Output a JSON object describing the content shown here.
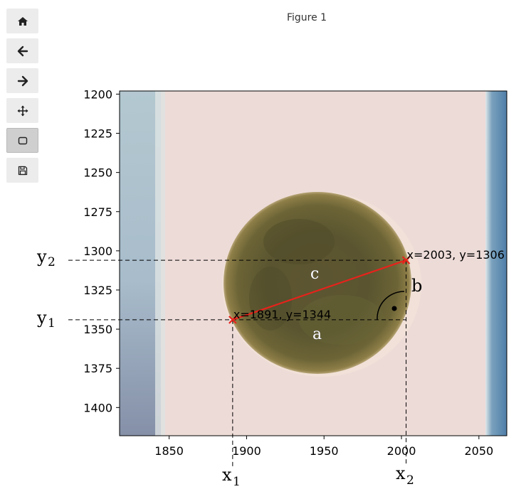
{
  "window": {
    "title": "Figure 1"
  },
  "toolbar": {
    "buttons": [
      {
        "name": "home",
        "icon": "home-icon"
      },
      {
        "name": "back",
        "icon": "arrow-left-icon"
      },
      {
        "name": "forward",
        "icon": "arrow-right-icon"
      },
      {
        "name": "pan",
        "icon": "move-icon"
      },
      {
        "name": "zoom",
        "icon": "zoom-rect-icon",
        "active": true
      },
      {
        "name": "save",
        "icon": "save-icon"
      }
    ]
  },
  "plot": {
    "xlim": [
      1818,
      2068
    ],
    "ylim_top": 1198,
    "ylim_bottom": 1418,
    "x_ticks": [
      "1850",
      "1900",
      "1950",
      "2000",
      "2050"
    ],
    "x_tick_values": [
      1850,
      1900,
      1950,
      2000,
      2050
    ],
    "y_ticks": [
      "1200",
      "1225",
      "1250",
      "1275",
      "1300",
      "1325",
      "1350",
      "1375",
      "1400"
    ],
    "y_tick_values": [
      1200,
      1225,
      1250,
      1275,
      1300,
      1325,
      1350,
      1375,
      1400
    ],
    "points": [
      {
        "x": 1891,
        "y": 1344,
        "label": "x=1891, y=1344"
      },
      {
        "x": 2003,
        "y": 1306,
        "label": "x=2003, y=1306"
      }
    ],
    "line_color": "#e8221b",
    "guide_color": "#000000",
    "annotations": {
      "x1_main": "x",
      "x1_sub": "1",
      "x2_main": "x",
      "x2_sub": "2",
      "y1_main": "y",
      "y1_sub": "1",
      "y2_main": "y",
      "y2_sub": "2",
      "side_a": "a",
      "side_b": "b",
      "side_c": "c"
    }
  }
}
